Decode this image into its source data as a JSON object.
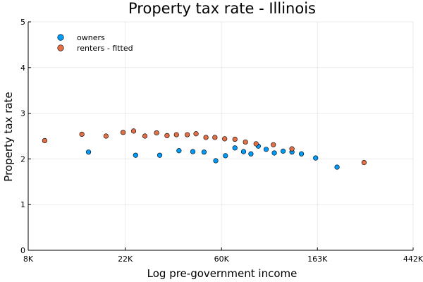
{
  "chart_data": {
    "type": "scatter",
    "title": "Property tax rate - Illinois",
    "xlabel": "Log pre-government income",
    "ylabel": "Property tax rate",
    "x_scale": "log",
    "xlim": [
      8000,
      442000
    ],
    "ylim": [
      0,
      5
    ],
    "x_ticks": [
      8000,
      22000,
      60000,
      163000,
      442000
    ],
    "x_tick_labels": [
      "8K",
      "22K",
      "60K",
      "163K",
      "442K"
    ],
    "y_ticks": [
      0,
      1,
      2,
      3,
      4,
      5
    ],
    "y_tick_labels": [
      "0",
      "1",
      "2",
      "3",
      "4",
      "5"
    ],
    "grid": true,
    "legend_position": "top-left",
    "series": [
      {
        "name": "owners",
        "color": "#009af9",
        "points": [
          {
            "x": 15000,
            "y": 2.15
          },
          {
            "x": 24500,
            "y": 2.08
          },
          {
            "x": 31500,
            "y": 2.08
          },
          {
            "x": 38500,
            "y": 2.18
          },
          {
            "x": 44500,
            "y": 2.16
          },
          {
            "x": 50000,
            "y": 2.15
          },
          {
            "x": 56500,
            "y": 1.96
          },
          {
            "x": 62500,
            "y": 2.07
          },
          {
            "x": 69000,
            "y": 2.24
          },
          {
            "x": 75500,
            "y": 2.16
          },
          {
            "x": 81500,
            "y": 2.11
          },
          {
            "x": 88000,
            "y": 2.28
          },
          {
            "x": 95500,
            "y": 2.21
          },
          {
            "x": 104000,
            "y": 2.13
          },
          {
            "x": 114000,
            "y": 2.17
          },
          {
            "x": 125000,
            "y": 2.15
          },
          {
            "x": 138000,
            "y": 2.11
          },
          {
            "x": 160000,
            "y": 2.02
          },
          {
            "x": 200000,
            "y": 1.82
          }
        ]
      },
      {
        "name": "renters - fitted",
        "color": "#e26f46",
        "points": [
          {
            "x": 9500,
            "y": 2.4
          },
          {
            "x": 14000,
            "y": 2.54
          },
          {
            "x": 18000,
            "y": 2.5
          },
          {
            "x": 21500,
            "y": 2.58
          },
          {
            "x": 24000,
            "y": 2.61
          },
          {
            "x": 27000,
            "y": 2.5
          },
          {
            "x": 30500,
            "y": 2.57
          },
          {
            "x": 34000,
            "y": 2.51
          },
          {
            "x": 37500,
            "y": 2.53
          },
          {
            "x": 42000,
            "y": 2.53
          },
          {
            "x": 46000,
            "y": 2.55
          },
          {
            "x": 51000,
            "y": 2.47
          },
          {
            "x": 56000,
            "y": 2.47
          },
          {
            "x": 62000,
            "y": 2.44
          },
          {
            "x": 69000,
            "y": 2.43
          },
          {
            "x": 77000,
            "y": 2.37
          },
          {
            "x": 86000,
            "y": 2.33
          },
          {
            "x": 103000,
            "y": 2.31
          },
          {
            "x": 125000,
            "y": 2.22
          },
          {
            "x": 265000,
            "y": 1.92
          }
        ]
      }
    ]
  }
}
